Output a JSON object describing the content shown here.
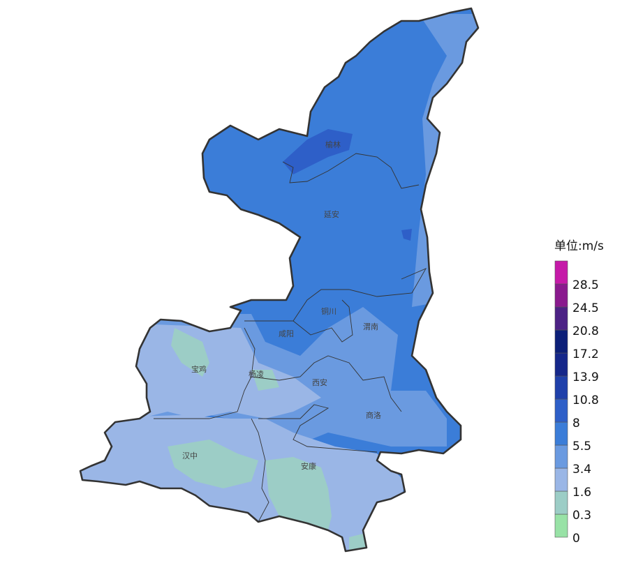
{
  "map": {
    "cities": [
      "榆林",
      "延安",
      "铜川",
      "渭南",
      "咸阳",
      "宝鸡",
      "杨凌",
      "西安",
      "商洛",
      "汉中",
      "安康"
    ],
    "legend": {
      "title": "单位:m/s",
      "ticks": [
        0,
        0.3,
        1.6,
        3.4,
        5.5,
        8,
        10.8,
        13.9,
        17.2,
        20.8,
        24.5,
        28.5
      ],
      "colors": [
        "#98e2a6",
        "#9ccdc6",
        "#9ab6e6",
        "#6a9ae0",
        "#3b7dd8",
        "#2e5fc8",
        "#1f40aa",
        "#15278a",
        "#0c1f78",
        "#4c2285",
        "#8a1a8e",
        "#c51aa8"
      ]
    }
  }
}
